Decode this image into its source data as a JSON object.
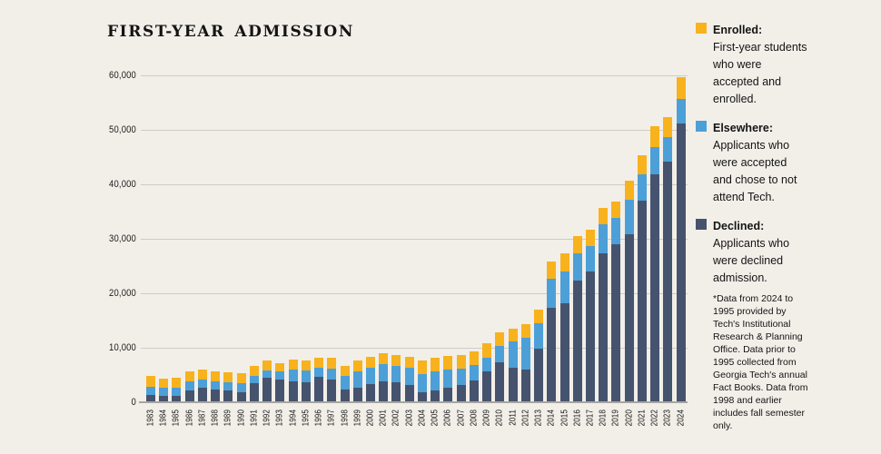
{
  "title": "FIRST-YEAR ADMISSION",
  "colors": {
    "background": "#F2EFE9",
    "enrolled": "#F8B21D",
    "elsewhere": "#4D9FD7",
    "declined": "#46536E",
    "gridline": "#CFCBC5",
    "baseline": "#A8A5A0",
    "text": "#141414"
  },
  "legend": {
    "entries": [
      {
        "name": "enrolled",
        "label": "Enrolled:",
        "description": "First-year students who were accepted and enrolled.",
        "color": "#F8B21D"
      },
      {
        "name": "elsewhere",
        "label": "Elsewhere:",
        "description": "Applicants who were accepted and chose to not attend Tech.",
        "color": "#4D9FD7"
      },
      {
        "name": "declined",
        "label": "Declined:",
        "description": "Applicants who were declined admission.",
        "color": "#46536E"
      }
    ],
    "footnote": "*Data from 2024 to 1995 provided by Tech's Institutional Research & Planning Office. Data prior to 1995 collected from Georgia Tech's annual Fact Books. Data from 1998 and earlier includes fall semester only."
  },
  "chart_data": {
    "type": "bar",
    "stacked": true,
    "stack_order": "bottom-to-top",
    "title": "FIRST-YEAR ADMISSION",
    "categories": [
      "1983",
      "1984",
      "1985",
      "1986",
      "1987",
      "1988",
      "1989",
      "1990",
      "1991",
      "1992",
      "1993",
      "1994",
      "1995",
      "1996",
      "1997",
      "1998",
      "1999",
      "2000",
      "2001",
      "2002",
      "2003",
      "2004",
      "2005",
      "2006",
      "2007",
      "2008",
      "2009",
      "2010",
      "2011",
      "2012",
      "2013",
      "2014",
      "2015",
      "2016",
      "2017",
      "2018",
      "2019",
      "2020",
      "2021",
      "2022",
      "2023",
      "2024"
    ],
    "series": [
      {
        "name": "Declined",
        "color_key": "declined",
        "values": [
          1400,
          1100,
          1200,
          2100,
          2600,
          2400,
          2200,
          1900,
          3500,
          4500,
          4200,
          3900,
          3700,
          4600,
          4200,
          2400,
          2700,
          3300,
          3900,
          3600,
          3200,
          1900,
          2200,
          2700,
          3200,
          4000,
          5600,
          7400,
          6300,
          6000,
          9900,
          17300,
          18100,
          22400,
          24000,
          27400,
          29000,
          30800,
          37000,
          41800,
          44200,
          51100
        ]
      },
      {
        "name": "Elsewhere",
        "color_key": "elsewhere",
        "values": [
          1500,
          1500,
          1500,
          1700,
          1600,
          1500,
          1500,
          1600,
          1400,
          1400,
          1400,
          2100,
          2200,
          1800,
          2000,
          2500,
          3000,
          3100,
          3100,
          3000,
          3100,
          3300,
          3400,
          3300,
          3000,
          2900,
          2500,
          2900,
          4900,
          5900,
          4600,
          5400,
          5900,
          5000,
          4600,
          5200,
          4800,
          6400,
          4900,
          5000,
          4400,
          4600
        ]
      },
      {
        "name": "Enrolled",
        "color_key": "enrolled",
        "values": [
          1900,
          1800,
          1800,
          1800,
          1800,
          1800,
          1800,
          1900,
          1800,
          1700,
          1600,
          1800,
          1800,
          1800,
          1900,
          1800,
          1900,
          2000,
          2000,
          2100,
          2000,
          2400,
          2500,
          2500,
          2500,
          2500,
          2700,
          2600,
          2300,
          2400,
          2500,
          3200,
          3300,
          3100,
          3000,
          3000,
          3100,
          3500,
          3500,
          3800,
          3800,
          4000
        ]
      }
    ],
    "ylim": [
      0,
      60000
    ],
    "yticks": [
      {
        "value": 0,
        "label": "0"
      },
      {
        "value": 10000,
        "label": "10,000"
      },
      {
        "value": 20000,
        "label": "20,000"
      },
      {
        "value": 30000,
        "label": "30,000"
      },
      {
        "value": 40000,
        "label": "40,000"
      },
      {
        "value": 50000,
        "label": "50,000"
      },
      {
        "value": 60000,
        "label": "60,000"
      }
    ],
    "grid": true,
    "legend_position": "right"
  }
}
